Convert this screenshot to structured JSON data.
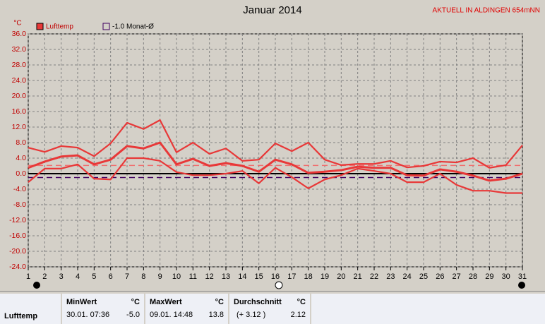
{
  "chart_data": {
    "type": "line",
    "title": "Januar 2014",
    "subtitle": "AKTUELL IN ALDINGEN 654mNN",
    "y_label": "°C",
    "x": [
      1,
      2,
      3,
      4,
      5,
      6,
      7,
      8,
      9,
      10,
      11,
      12,
      13,
      14,
      15,
      16,
      17,
      18,
      19,
      20,
      21,
      22,
      23,
      24,
      25,
      26,
      27,
      28,
      29,
      30,
      31
    ],
    "xlim": [
      1,
      31
    ],
    "xticks": [
      1,
      2,
      3,
      4,
      5,
      6,
      7,
      8,
      9,
      10,
      11,
      12,
      13,
      14,
      15,
      16,
      17,
      18,
      19,
      20,
      21,
      22,
      23,
      24,
      25,
      26,
      27,
      28,
      29,
      30,
      31
    ],
    "ylim": [
      -24,
      36
    ],
    "yticks": [
      {
        "value": 36,
        "label": "36.0"
      },
      {
        "value": 32,
        "label": "32.0"
      },
      {
        "value": 28,
        "label": "28.0"
      },
      {
        "value": 24,
        "label": "24.0"
      },
      {
        "value": 20,
        "label": "20.0"
      },
      {
        "value": 16,
        "label": "16.0"
      },
      {
        "value": 12,
        "label": "12.0"
      },
      {
        "value": 8,
        "label": "8.0"
      },
      {
        "value": 4,
        "label": "4.0"
      },
      {
        "value": 0,
        "label": "0.0"
      },
      {
        "value": -4,
        "label": "-4.0"
      },
      {
        "value": -8,
        "label": "-8.0"
      },
      {
        "value": -12,
        "label": "-12.0"
      },
      {
        "value": -16,
        "label": "-16.0"
      },
      {
        "value": -20,
        "label": "-20.0"
      },
      {
        "value": -24,
        "label": "-24.0"
      }
    ],
    "grid": true,
    "series": [
      {
        "name": "Lufttemp",
        "color": "#e83838",
        "values": [
          6.7,
          5.6,
          7.1,
          6.7,
          4.5,
          7.8,
          13.1,
          11.5,
          13.8,
          5.5,
          8.0,
          5.1,
          6.5,
          3.3,
          3.6,
          7.8,
          5.8,
          8.0,
          3.6,
          2.2,
          2.5,
          2.5,
          3.3,
          1.6,
          2.0,
          3.1,
          2.9,
          4.0,
          1.5,
          2.2,
          7.3
        ]
      },
      {
        "color": "#e83838",
        "values": [
          1.5,
          3.1,
          4.4,
          4.7,
          2.4,
          3.6,
          7.1,
          6.5,
          8.0,
          2.4,
          3.8,
          2.0,
          2.7,
          2.0,
          0.5,
          3.6,
          2.4,
          0.2,
          0.5,
          0.9,
          1.8,
          1.5,
          1.5,
          -0.4,
          -0.5,
          1.1,
          0.5,
          -0.5,
          -1.8,
          -1.3,
          0
        ]
      },
      {
        "color": "#e83838",
        "values": [
          -2.2,
          1.3,
          1.3,
          2.4,
          -1.3,
          -1.5,
          4.0,
          4.0,
          3.3,
          0.4,
          -0.4,
          -0.4,
          0,
          0.7,
          -2.5,
          1.5,
          -0.9,
          -3.8,
          -1.5,
          -0.4,
          1.3,
          0.7,
          0,
          -2.2,
          -2.2,
          0,
          -2.9,
          -4.4,
          -4.4,
          -5.0,
          -5.0
        ]
      }
    ],
    "reference_lines": [
      {
        "name": "-1.0 Monat-Ø",
        "value": -1.0,
        "color": "#400060"
      },
      {
        "value": 2.12,
        "color": "#f07070"
      }
    ]
  },
  "table": {
    "headers": [
      [
        "MinWert",
        "°C"
      ],
      [
        "MaxWert",
        "°C"
      ],
      [
        "Durchschnitt",
        "°C"
      ]
    ],
    "rows": [
      [
        "Lufttemp",
        "30.01.  07:36",
        "-5.0",
        "09.01.  14:48",
        "13.8",
        "(+ 3.12 )",
        "2.12"
      ]
    ]
  }
}
